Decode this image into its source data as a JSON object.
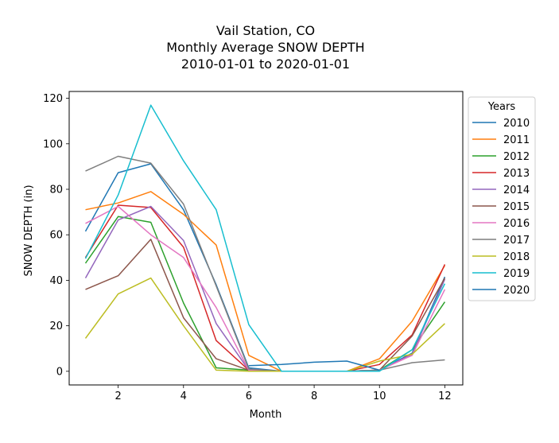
{
  "chart_data": {
    "type": "line",
    "title_lines": [
      "Vail Station, CO",
      "Monthly Average SNOW DEPTH",
      "2010-01-01 to 2020-01-01"
    ],
    "xlabel": "Month",
    "ylabel": "SNOW DEPTH (in)",
    "xlim": [
      0.5,
      12.55
    ],
    "ylim": [
      -6,
      123
    ],
    "xticks": [
      2,
      4,
      6,
      8,
      10,
      12
    ],
    "yticks": [
      0,
      20,
      40,
      60,
      80,
      100,
      120
    ],
    "grid": false,
    "legend_title": "Years",
    "legend_position": "outside-right",
    "x": [
      1,
      2,
      3,
      4,
      5,
      6,
      7,
      8,
      9,
      10,
      11,
      12
    ],
    "series": [
      {
        "name": "2010",
        "color": "#1f77b4",
        "values": [
          61.5,
          87.3,
          91.2,
          71.0,
          38.0,
          1.5,
          0,
          0,
          0,
          0.5,
          8.0,
          41.5
        ]
      },
      {
        "name": "2011",
        "color": "#ff7f0e",
        "values": [
          71.0,
          74.0,
          79.0,
          69.0,
          55.5,
          7.0,
          0,
          0,
          0,
          5.5,
          22.0,
          46.5
        ]
      },
      {
        "name": "2012",
        "color": "#2ca02c",
        "values": [
          47.5,
          68.0,
          65.5,
          30.0,
          1.5,
          0.5,
          0,
          0,
          0,
          0.5,
          9.5,
          30.5
        ]
      },
      {
        "name": "2013",
        "color": "#d62728",
        "values": [
          50.0,
          73.0,
          72.0,
          54.5,
          13.5,
          0.5,
          0,
          0,
          0,
          3.0,
          16.0,
          47.0
        ]
      },
      {
        "name": "2014",
        "color": "#9467bd",
        "values": [
          41.0,
          66.5,
          72.5,
          57.5,
          21.0,
          0.5,
          0,
          0,
          0,
          0.5,
          7.5,
          40.5
        ]
      },
      {
        "name": "2015",
        "color": "#8c564b",
        "values": [
          36.0,
          42.0,
          58.0,
          23.5,
          5.5,
          0.5,
          0,
          0,
          0,
          0.5,
          15.5,
          41.0
        ]
      },
      {
        "name": "2016",
        "color": "#e377c2",
        "values": [
          65.0,
          72.5,
          60.0,
          50.0,
          28.0,
          0.5,
          0,
          0,
          0,
          0.5,
          7.0,
          36.0
        ]
      },
      {
        "name": "2017",
        "color": "#7f7f7f",
        "values": [
          88.0,
          94.5,
          91.5,
          73.5,
          37.5,
          1.0,
          0,
          0,
          0,
          0.5,
          3.8,
          5.0
        ]
      },
      {
        "name": "2018",
        "color": "#bcbd22",
        "values": [
          14.5,
          34.0,
          41.0,
          20.0,
          0.5,
          0,
          0,
          0,
          0,
          4.5,
          7.5,
          21.0
        ]
      },
      {
        "name": "2019",
        "color": "#17becf",
        "values": [
          49.5,
          77.5,
          117.0,
          92.5,
          71.0,
          20.5,
          0,
          0,
          0,
          0,
          9.5,
          38.5
        ]
      },
      {
        "name": "2020",
        "color": "#1f77b4",
        "values": [
          null,
          null,
          null,
          null,
          null,
          2.5,
          3.0,
          4.0,
          4.5,
          0.5,
          null,
          null
        ]
      }
    ]
  }
}
